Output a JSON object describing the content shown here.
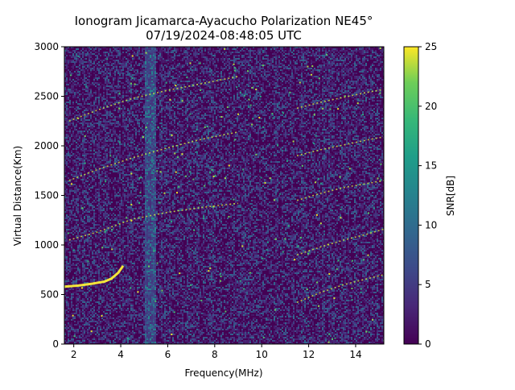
{
  "chart_data": {
    "type": "heatmap",
    "title_line1": "Ionogram Jicamarca-Ayacucho Polarization NE45°",
    "title_line2": "07/19/2024-08:48:05 UTC",
    "xlabel": "Frequency(MHz)",
    "ylabel": "Virtual Distance(Km)",
    "xlim": [
      1.6,
      15.2
    ],
    "ylim": [
      0,
      3000
    ],
    "x_ticks": [
      2,
      4,
      6,
      8,
      10,
      12,
      14
    ],
    "y_ticks": [
      0,
      500,
      1000,
      1500,
      2000,
      2500,
      3000
    ],
    "colorbar": {
      "label": "SNR[dB]",
      "range": [
        0,
        25
      ],
      "ticks": [
        0,
        5,
        10,
        15,
        20,
        25
      ],
      "colormap": "viridis"
    },
    "traces": [
      {
        "description": "strong echo trace",
        "points": [
          [
            1.6,
            580
          ],
          [
            2.2,
            590
          ],
          [
            2.8,
            610
          ],
          [
            3.3,
            630
          ],
          [
            3.6,
            660
          ],
          [
            3.9,
            720
          ],
          [
            4.1,
            790
          ]
        ]
      },
      {
        "description": "multihop echo trace",
        "points": [
          [
            1.8,
            1050
          ],
          [
            3.0,
            1130
          ],
          [
            4.5,
            1260
          ],
          [
            6.0,
            1330
          ],
          [
            7.5,
            1380
          ],
          [
            9.0,
            1420
          ]
        ]
      },
      {
        "description": "multihop echo trace",
        "points": [
          [
            1.8,
            1650
          ],
          [
            3.0,
            1760
          ],
          [
            4.5,
            1880
          ],
          [
            6.0,
            1980
          ],
          [
            7.5,
            2070
          ],
          [
            9.0,
            2140
          ]
        ]
      },
      {
        "description": "multihop echo trace",
        "points": [
          [
            1.8,
            2250
          ],
          [
            3.0,
            2360
          ],
          [
            4.5,
            2480
          ],
          [
            6.0,
            2560
          ],
          [
            7.5,
            2630
          ],
          [
            9.0,
            2700
          ]
        ]
      },
      {
        "description": "upper F-region trace",
        "points": [
          [
            11.5,
            420
          ],
          [
            12.5,
            520
          ],
          [
            13.5,
            600
          ],
          [
            14.5,
            660
          ],
          [
            15.2,
            700
          ]
        ]
      },
      {
        "description": "upper F-region trace",
        "points": [
          [
            11.5,
            900
          ],
          [
            12.5,
            980
          ],
          [
            13.5,
            1050
          ],
          [
            14.5,
            1110
          ],
          [
            15.2,
            1160
          ]
        ]
      },
      {
        "description": "upper F-region trace",
        "points": [
          [
            11.5,
            1450
          ],
          [
            12.5,
            1520
          ],
          [
            13.5,
            1580
          ],
          [
            14.5,
            1620
          ],
          [
            15.2,
            1650
          ]
        ]
      },
      {
        "description": "upper F-region trace",
        "points": [
          [
            11.5,
            1900
          ],
          [
            12.5,
            1960
          ],
          [
            13.5,
            2010
          ],
          [
            14.5,
            2060
          ],
          [
            15.2,
            2090
          ]
        ]
      },
      {
        "description": "upper F-region trace",
        "points": [
          [
            11.5,
            2380
          ],
          [
            12.5,
            2440
          ],
          [
            13.5,
            2490
          ],
          [
            14.5,
            2540
          ],
          [
            15.2,
            2570
          ]
        ]
      }
    ],
    "noise_band_x": [
      5.0,
      5.5
    ]
  }
}
